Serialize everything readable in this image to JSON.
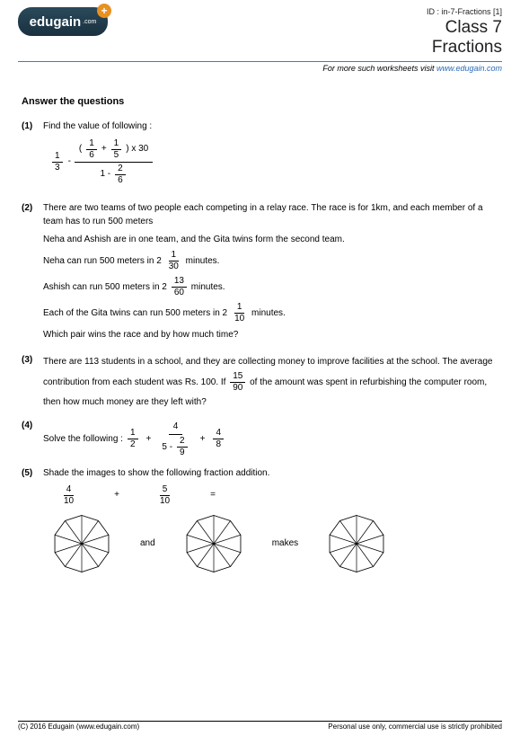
{
  "meta": {
    "id_label": "ID : in-7-Fractions [1]",
    "class_label": "Class 7",
    "topic": "Fractions",
    "visit_prefix": "For more such worksheets visit ",
    "visit_link": "www.edugain.com",
    "logo_text": "edugain",
    "logo_sub": ".com",
    "logo_plus": "+"
  },
  "section_title": "Answer the questions",
  "q1": {
    "num": "(1)",
    "prompt": "Find the value of following :",
    "a_num": "1",
    "a_den": "3",
    "minus": "-",
    "top_lp": "(",
    "top_f1n": "1",
    "top_f1d": "6",
    "top_plus": "+",
    "top_f2n": "1",
    "top_f2d": "5",
    "top_rp": ") x 30",
    "bot_1": "1 -",
    "bot_fn": "2",
    "bot_fd": "6"
  },
  "q2": {
    "num": "(2)",
    "l1": "There are two teams of two people each competing in a relay race. The race is for 1km, and each member of a team has to run 500 meters",
    "l2": "Neha and Ashish are in one team, and the Gita twins form the second team.",
    "neha_pre": "Neha can run 500 meters in ",
    "neha_whole": "2",
    "neha_n": "1",
    "neha_d": "30",
    "neha_post": " minutes.",
    "ashish_pre": "Ashish can run 500 meters in ",
    "ashish_whole": "2",
    "ashish_n": "13",
    "ashish_d": "60",
    "ashish_post": " minutes.",
    "gita_pre": "Each of the Gita twins can run 500 meters in ",
    "gita_whole": "2",
    "gita_n": "1",
    "gita_d": "10",
    "gita_post": " minutes.",
    "l3": "Which pair wins the race and by how much time?"
  },
  "q3": {
    "num": "(3)",
    "part1": "There are 113 students in a school, and they are collecting money to improve facilities at the school. The average contribution from each student was Rs. 100. If ",
    "fn": "15",
    "fd": "90",
    "part2": " of the amount was spent in refurbishing the computer room, then how much money are they left with?"
  },
  "q4": {
    "num": "(4)",
    "label": "Solve the following : ",
    "f1n": "1",
    "f1d": "2",
    "p1": "+",
    "f2topn": "4",
    "f2bot_5": "5 -",
    "f2bot_fn": "2",
    "f2bot_fd": "9",
    "p2": "+",
    "f3n": "4",
    "f3d": "8"
  },
  "q5": {
    "num": "(5)",
    "prompt": "Shade the images to show the following fraction addition.",
    "f1n": "4",
    "f1d": "10",
    "plus": "+",
    "f2n": "5",
    "f2d": "10",
    "eq": "=",
    "and": "and",
    "makes": "makes",
    "poly_sides": 10,
    "poly_stroke": "#000",
    "poly_fill": "#fff"
  },
  "footer": {
    "left": "(C) 2016 Edugain (www.edugain.com)",
    "right": "Personal use only, commercial use is strictly prohibited"
  },
  "colors": {
    "rule": "#2a88c8",
    "link": "#2a6ab8"
  }
}
